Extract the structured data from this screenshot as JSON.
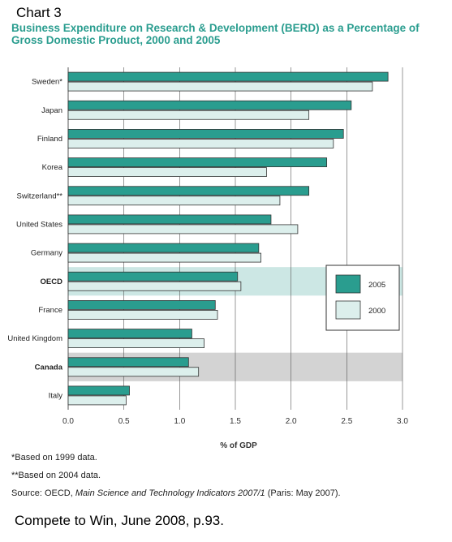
{
  "chart_label": "Chart 3",
  "chart_data": {
    "type": "bar",
    "orientation": "horizontal",
    "title": "Business Expenditure on Research & Development (BERD) as a Percentage of Gross Domestic Product, 2000 and 2005",
    "xlabel": "% of GDP",
    "xlim": [
      0,
      3.0
    ],
    "xticks": [
      "0.0",
      "0.5",
      "1.0",
      "1.5",
      "2.0",
      "2.5",
      "3.0"
    ],
    "grid": "vertical",
    "legend_position": "right",
    "categories": [
      "Sweden*",
      "Japan",
      "Finland",
      "Korea",
      "Switzerland**",
      "United States",
      "Germany",
      "OECD",
      "France",
      "United Kingdom",
      "Canada",
      "Italy"
    ],
    "bold_categories": [
      "OECD",
      "Canada"
    ],
    "highlighted_categories": [
      {
        "name": "OECD",
        "color": "#cce7e4"
      },
      {
        "name": "Canada",
        "color": "#d3d3d3"
      }
    ],
    "series": [
      {
        "name": "2005",
        "color": "#2a9d8f",
        "values": [
          2.87,
          2.54,
          2.47,
          2.32,
          2.16,
          1.82,
          1.71,
          1.52,
          1.32,
          1.11,
          1.08,
          0.55
        ]
      },
      {
        "name": "2000",
        "color": "#dcefec",
        "values": [
          2.73,
          2.16,
          2.38,
          1.78,
          1.9,
          2.06,
          1.73,
          1.55,
          1.34,
          1.22,
          1.17,
          0.52
        ]
      }
    ]
  },
  "footnotes": {
    "note1": "*Based on 1999 data.",
    "note2": "**Based on 2004 data.",
    "source_prefix": "Source: OECD, ",
    "source_title": "Main Science and Technology Indicators 2007/1",
    "source_suffix": " (Paris: May 2007)."
  },
  "citation": "Compete to Win, June 2008, p.93."
}
